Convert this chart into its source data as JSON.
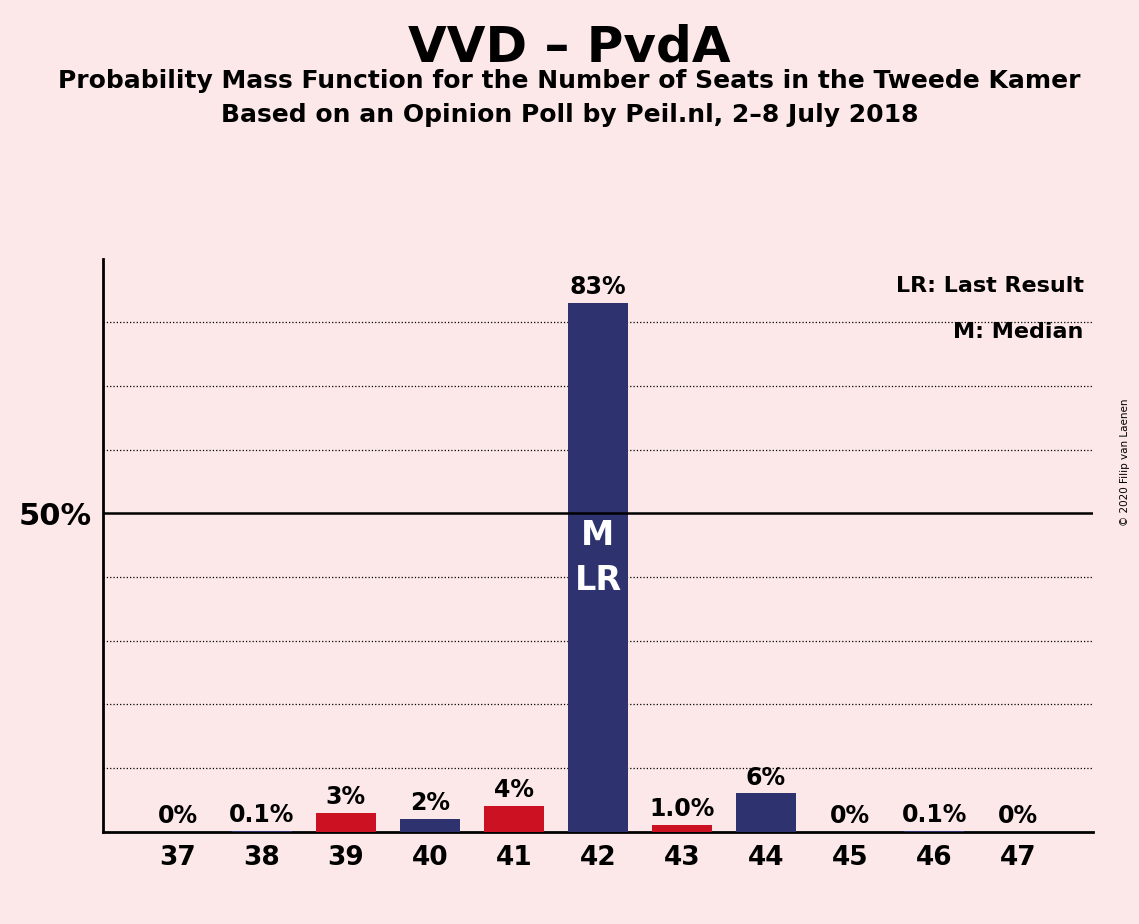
{
  "title": "VVD – PvdA",
  "subtitle1": "Probability Mass Function for the Number of Seats in the Tweede Kamer",
  "subtitle2": "Based on an Opinion Poll by Peil.nl, 2–8 July 2018",
  "categories": [
    37,
    38,
    39,
    40,
    41,
    42,
    43,
    44,
    45,
    46,
    47
  ],
  "values": [
    0.0,
    0.1,
    3.0,
    2.0,
    4.0,
    83.0,
    1.0,
    6.0,
    0.0,
    0.1,
    0.0
  ],
  "bar_colors": [
    "#2e3370",
    "#2e3370",
    "#cc1122",
    "#2e3370",
    "#cc1122",
    "#2e3370",
    "#cc1122",
    "#2e3370",
    "#2e3370",
    "#2e3370",
    "#2e3370"
  ],
  "bar_labels": [
    "0%",
    "0.1%",
    "3%",
    "2%",
    "4%",
    "83%",
    "1.0%",
    "6%",
    "0%",
    "0.1%",
    "0%"
  ],
  "median_bar_idx": 5,
  "background_color": "#fce8e8",
  "ylim": [
    0,
    90
  ],
  "ylabel_50": "50%",
  "grid_ticks": [
    10,
    20,
    30,
    40,
    50,
    60,
    70,
    80
  ],
  "legend_text1": "LR: Last Result",
  "legend_text2": "M: Median",
  "copyright": "© 2020 Filip van Laenen",
  "title_fontsize": 36,
  "subtitle_fontsize": 18,
  "label_fontsize": 17,
  "tick_fontsize": 19,
  "ytick_fontsize": 22,
  "bar_width": 0.72
}
